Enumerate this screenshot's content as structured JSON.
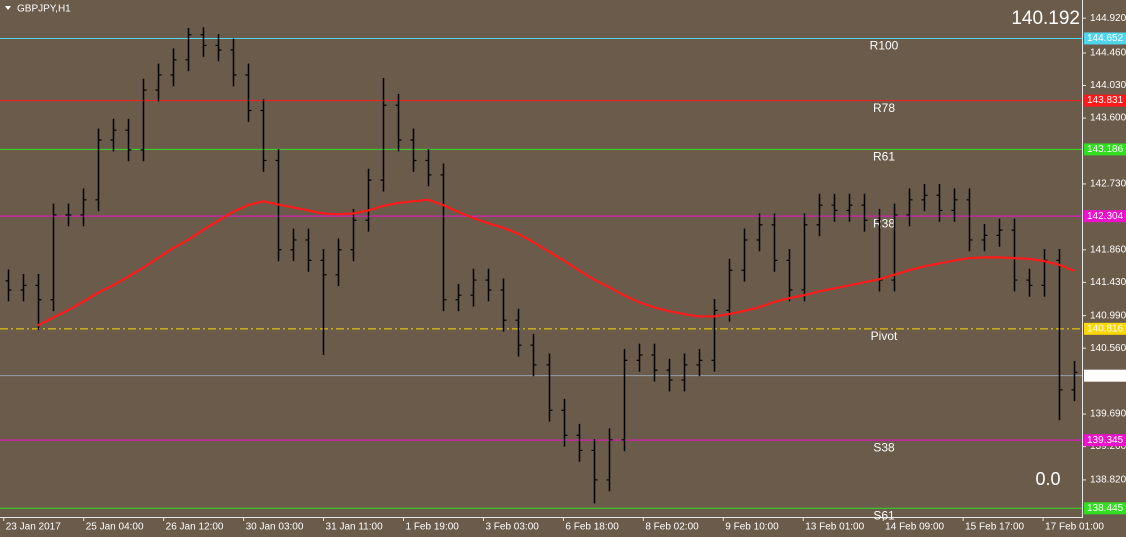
{
  "chart_data": {
    "type": "ohlc",
    "title": "GBPJPY,H1",
    "color": "#000000",
    "background": "#6b5b4a",
    "open": [
      141.45,
      141.33,
      141.39,
      141.2,
      142.32,
      142.32,
      142.52,
      143.31,
      143.44,
      143.18,
      143.97,
      144.17,
      144.37,
      144.7,
      144.56,
      144.5,
      144.17,
      143.7,
      143.04,
      141.86,
      141.99,
      141.72,
      141.53,
      141.86,
      142.25,
      142.78,
      143.77,
      143.31,
      143.04,
      142.85,
      141.2,
      141.26,
      141.46,
      141.33,
      140.93,
      140.6,
      140.34,
      139.74,
      139.41,
      139.21,
      138.82,
      139.35,
      140.4,
      140.47,
      140.27,
      140.14,
      140.34,
      140.4,
      141.06,
      141.59,
      141.99,
      142.19,
      141.72,
      141.33,
      142.19,
      142.45,
      142.38,
      142.45,
      142.25,
      141.46,
      142.32,
      142.52,
      142.58,
      142.38,
      142.52,
      141.99,
      142.05,
      142.12,
      141.46,
      141.39,
      141.72,
      140.01
    ],
    "high": [
      141.6,
      141.54,
      141.54,
      142.47,
      142.47,
      142.67,
      143.46,
      143.59,
      143.59,
      144.12,
      144.32,
      144.52,
      144.79,
      144.8,
      144.71,
      144.65,
      144.32,
      143.85,
      143.19,
      142.14,
      142.14,
      141.87,
      142.01,
      142.4,
      142.93,
      144.13,
      143.92,
      143.46,
      143.19,
      143.0,
      141.41,
      141.61,
      141.61,
      141.48,
      141.08,
      140.75,
      140.49,
      139.89,
      139.56,
      139.36,
      139.5,
      140.55,
      140.62,
      140.62,
      140.42,
      140.49,
      140.55,
      141.21,
      141.74,
      142.14,
      142.34,
      142.34,
      141.87,
      142.34,
      142.6,
      142.6,
      142.6,
      142.6,
      142.4,
      142.47,
      142.67,
      142.73,
      142.73,
      142.67,
      142.67,
      142.2,
      142.27,
      142.27,
      141.61,
      141.87,
      141.87,
      140.39
    ],
    "low": [
      141.18,
      141.18,
      140.8,
      141.05,
      142.17,
      142.17,
      142.37,
      143.16,
      143.03,
      143.03,
      143.82,
      144.02,
      144.22,
      144.41,
      144.35,
      144.02,
      143.55,
      142.89,
      141.71,
      141.71,
      141.57,
      140.47,
      141.38,
      141.71,
      142.1,
      142.63,
      143.16,
      142.89,
      142.7,
      141.05,
      141.05,
      141.11,
      141.18,
      140.78,
      140.45,
      140.19,
      139.59,
      139.26,
      139.06,
      138.51,
      138.67,
      139.2,
      140.25,
      140.12,
      139.99,
      139.99,
      140.19,
      140.25,
      140.91,
      141.44,
      141.84,
      141.57,
      141.18,
      141.18,
      142.04,
      142.23,
      142.23,
      142.1,
      141.31,
      141.31,
      142.17,
      142.37,
      142.23,
      142.23,
      141.84,
      141.84,
      141.9,
      141.31,
      141.24,
      141.24,
      139.61,
      139.86
    ],
    "close": [
      141.33,
      141.39,
      141.2,
      142.32,
      142.32,
      142.52,
      143.31,
      143.44,
      143.18,
      143.97,
      144.17,
      144.37,
      144.7,
      144.56,
      144.5,
      144.17,
      143.7,
      143.04,
      141.86,
      141.99,
      141.72,
      141.53,
      141.86,
      142.25,
      142.78,
      143.77,
      143.31,
      143.04,
      142.85,
      141.2,
      141.26,
      141.46,
      141.33,
      140.93,
      140.6,
      140.34,
      139.74,
      139.41,
      139.21,
      138.82,
      139.35,
      140.4,
      140.47,
      140.27,
      140.14,
      140.34,
      140.4,
      141.06,
      141.59,
      141.99,
      142.19,
      141.72,
      141.33,
      142.19,
      142.45,
      142.38,
      142.45,
      142.25,
      141.46,
      142.32,
      142.52,
      142.58,
      142.38,
      142.52,
      141.99,
      142.05,
      142.12,
      141.46,
      141.39,
      141.72,
      140.01,
      140.24
    ],
    "ma": {
      "color": "#ff1a1a",
      "values": [
        null,
        null,
        140.86,
        140.96,
        141.06,
        141.17,
        141.29,
        141.39,
        141.5,
        141.62,
        141.75,
        141.88,
        141.99,
        142.12,
        142.24,
        142.36,
        142.45,
        142.5,
        142.46,
        142.42,
        142.38,
        142.34,
        142.33,
        142.34,
        142.38,
        142.44,
        142.48,
        142.5,
        142.52,
        142.45,
        142.36,
        142.28,
        142.21,
        142.15,
        142.07,
        141.96,
        141.84,
        141.72,
        141.59,
        141.47,
        141.37,
        141.26,
        141.17,
        141.1,
        141.05,
        141.01,
        140.98,
        140.98,
        141.01,
        141.05,
        141.1,
        141.17,
        141.22,
        141.26,
        141.31,
        141.35,
        141.39,
        141.43,
        141.47,
        141.53,
        141.59,
        141.64,
        141.68,
        141.72,
        141.75,
        141.76,
        141.76,
        141.75,
        141.74,
        141.71,
        141.66,
        141.58
      ]
    },
    "levels": [
      {
        "label": "R100",
        "value": 144.652,
        "color": "#4fd6ec",
        "style": "solid"
      },
      {
        "label": "R78",
        "value": 143.831,
        "color": "#ff1a1a",
        "style": "solid"
      },
      {
        "label": "R61",
        "value": 143.186,
        "color": "#33dd22",
        "style": "solid"
      },
      {
        "label": "R38",
        "value": 142.304,
        "color": "#ee11cc",
        "style": "solid"
      },
      {
        "label": "Pivot",
        "value": 140.816,
        "color": "#ffd700",
        "style": "dashdot"
      },
      {
        "label": "S38",
        "value": 139.345,
        "color": "#ee11cc",
        "style": "solid"
      },
      {
        "label": "S61",
        "value": 138.445,
        "color": "#33dd22",
        "style": "solid"
      }
    ],
    "last": {
      "value": 140.197,
      "color": "#8fa0b4"
    },
    "bid": {
      "value": 140.192,
      "color": "#8fe03a"
    },
    "counter": {
      "text": "0.0",
      "color": "#5ec22a"
    },
    "xlim": [
      -0.5,
      71.5
    ],
    "xticks": [
      {
        "value": -0.25,
        "label": "23 Jan 2017"
      },
      {
        "value": 5.07,
        "label": "25 Jan 04:00"
      },
      {
        "value": 10.39,
        "label": "26 Jan 12:00"
      },
      {
        "value": 15.71,
        "label": "30 Jan 03:00"
      },
      {
        "value": 21.03,
        "label": "31 Jan 11:00"
      },
      {
        "value": 26.35,
        "label": "1 Feb 19:00"
      },
      {
        "value": 31.67,
        "label": "3 Feb 03:00"
      },
      {
        "value": 36.99,
        "label": "6 Feb 18:00"
      },
      {
        "value": 42.31,
        "label": "8 Feb 02:00"
      },
      {
        "value": 47.63,
        "label": "9 Feb 10:00"
      },
      {
        "value": 52.95,
        "label": "13 Feb 01:00"
      },
      {
        "value": 58.27,
        "label": "14 Feb 09:00"
      },
      {
        "value": 63.59,
        "label": "15 Feb 17:00"
      },
      {
        "value": 68.91,
        "label": "17 Feb 01:00"
      }
    ],
    "ylim": [
      138.33,
      145.16
    ],
    "yticks": [
      {
        "value": 144.92,
        "label": "144.920"
      },
      {
        "value": 144.46,
        "label": "144.460"
      },
      {
        "value": 144.03,
        "label": "144.030"
      },
      {
        "value": 143.6,
        "label": "143.600"
      },
      {
        "value": 142.73,
        "label": "142.730"
      },
      {
        "value": 141.86,
        "label": "141.860"
      },
      {
        "value": 141.43,
        "label": "141.430"
      },
      {
        "value": 140.99,
        "label": "140.990"
      },
      {
        "value": 140.56,
        "label": "140.560"
      },
      {
        "value": 139.69,
        "label": "139.690"
      },
      {
        "value": 139.26,
        "label": "139.260"
      },
      {
        "value": 138.82,
        "label": "138.820"
      }
    ]
  }
}
